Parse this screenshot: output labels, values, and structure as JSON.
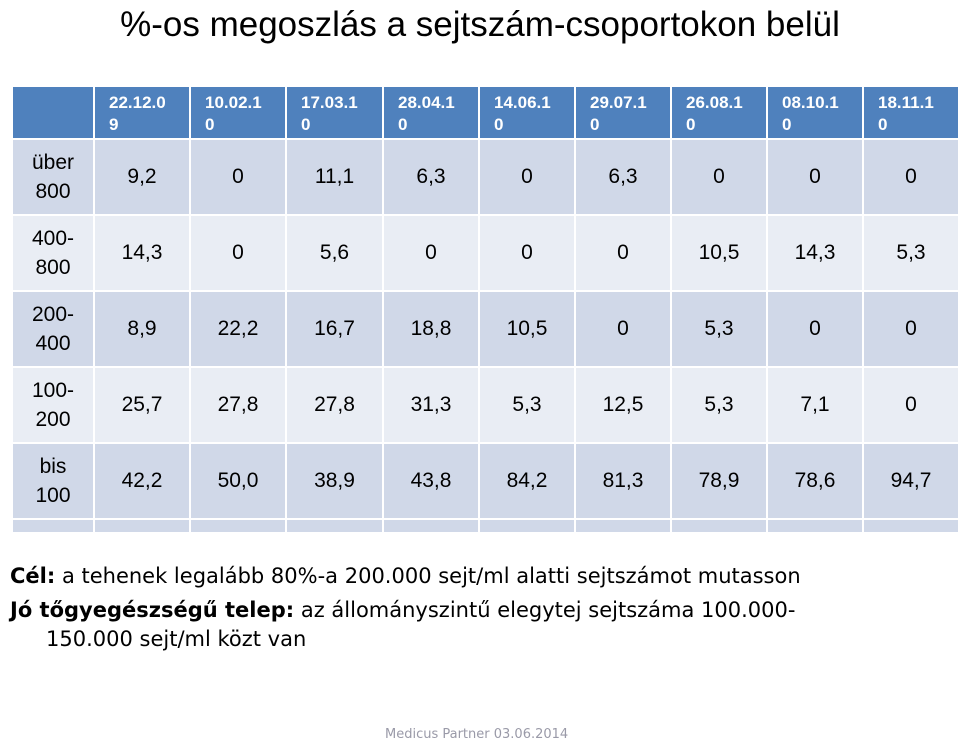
{
  "title": "%-os megoszlás a sejtszám-csoportokon belül",
  "table": {
    "headers": [
      "22.12.0\n9",
      "10.02.1\n0",
      "17.03.1\n0",
      "28.04.1\n0",
      "14.06.1\n0",
      "29.07.1\n0",
      "26.08.1\n0",
      "08.10.1\n0",
      "18.11.1\n0"
    ],
    "rows": [
      {
        "label": "über 800",
        "values": [
          "9,2",
          "0",
          "11,1",
          "6,3",
          "0",
          "6,3",
          "0",
          "0",
          "0"
        ]
      },
      {
        "label": "400-800",
        "values": [
          "14,3",
          "0",
          "5,6",
          "0",
          "0",
          "0",
          "10,5",
          "14,3",
          "5,3"
        ]
      },
      {
        "label": "200-400",
        "values": [
          "8,9",
          "22,2",
          "16,7",
          "18,8",
          "10,5",
          "0",
          "5,3",
          "0",
          "0"
        ]
      },
      {
        "label": "100-200",
        "values": [
          "25,7",
          "27,8",
          "27,8",
          "31,3",
          "5,3",
          "12,5",
          "5,3",
          "7,1",
          "0"
        ]
      },
      {
        "label": "bis 100",
        "values": [
          "42,2",
          "50,0",
          "38,9",
          "43,8",
          "84,2",
          "81,3",
          "78,9",
          "78,6",
          "94,7"
        ]
      }
    ]
  },
  "notes": {
    "goal_label": "Cél:",
    "goal_text": " a tehenek legalább 80%-a 200.000 sejt/ml alatti sejtszámot mutasson",
    "farm_label": "Jó tőgyegészségű telep:",
    "farm_text": " az állományszintű elegytej sejtszáma 100.000-",
    "farm_text_cont": "150.000 sejt/ml közt van"
  },
  "footer": "Medicus Partner 03.06.2014"
}
